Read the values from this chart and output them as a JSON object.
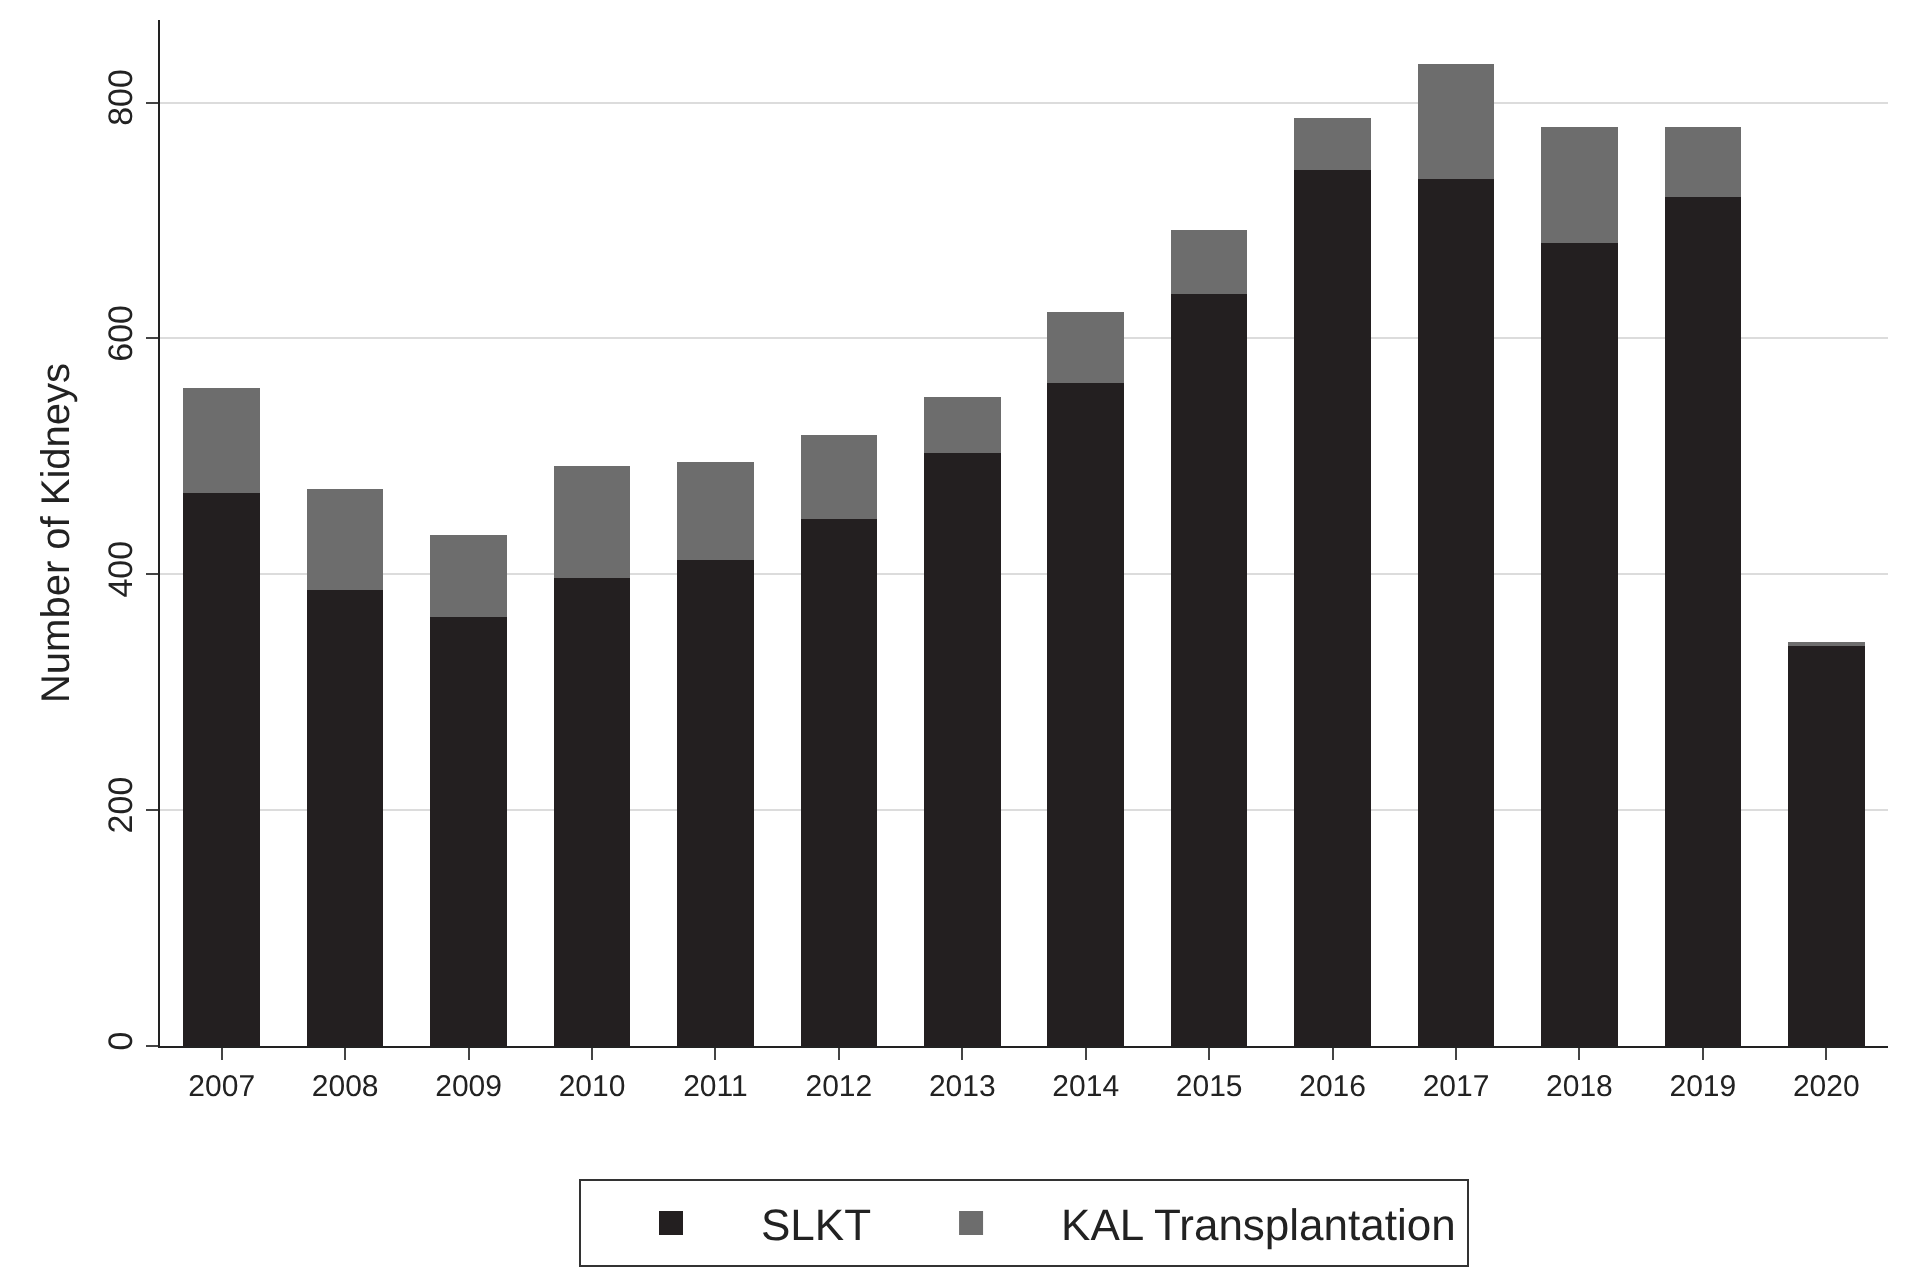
{
  "chart_data": {
    "type": "bar",
    "stacked": true,
    "ylabel": "Number of Kidneys",
    "categories": [
      "2007",
      "2008",
      "2009",
      "2010",
      "2011",
      "2012",
      "2013",
      "2014",
      "2015",
      "2016",
      "2017",
      "2018",
      "2019",
      "2020"
    ],
    "series": [
      {
        "name": "SLKT",
        "color": "#231f20",
        "values": [
          469,
          387,
          364,
          397,
          412,
          447,
          503,
          562,
          638,
          743,
          735,
          681,
          720,
          340
        ]
      },
      {
        "name": "KAL Transplantation",
        "color": "#6d6d6d",
        "values": [
          89,
          85,
          69,
          95,
          83,
          71,
          47,
          60,
          54,
          44,
          98,
          98,
          59,
          3
        ]
      }
    ],
    "ylim": [
      0,
      870
    ],
    "yticks": [
      0,
      200,
      400,
      600,
      800
    ],
    "grid": "y",
    "legend": "bottom"
  }
}
